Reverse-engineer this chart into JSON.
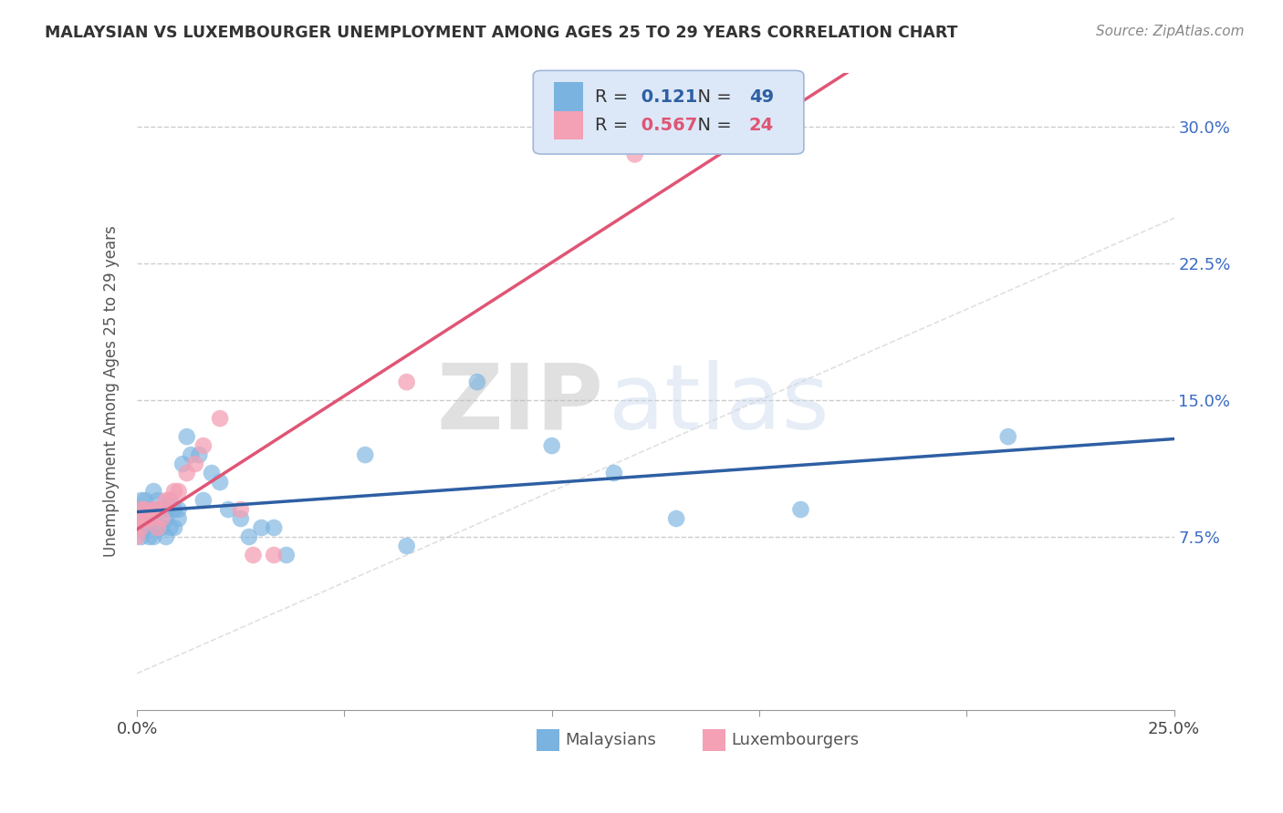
{
  "title": "MALAYSIAN VS LUXEMBOURGER UNEMPLOYMENT AMONG AGES 25 TO 29 YEARS CORRELATION CHART",
  "source": "Source: ZipAtlas.com",
  "ylabel": "Unemployment Among Ages 25 to 29 years",
  "xlim": [
    0.0,
    0.25
  ],
  "ylim": [
    -0.02,
    0.33
  ],
  "xtick_positions": [
    0.0,
    0.05,
    0.1,
    0.15,
    0.2,
    0.25
  ],
  "xtick_labels_show": [
    "0.0%",
    "",
    "",
    "",
    "",
    "25.0%"
  ],
  "ytick_positions": [
    0.075,
    0.15,
    0.225,
    0.3
  ],
  "ytick_labels": [
    "7.5%",
    "15.0%",
    "22.5%",
    "30.0%"
  ],
  "malaysian_color": "#7ab3e0",
  "luxembourger_color": "#f4a0b5",
  "blue_line_color": "#2e5fa3",
  "pink_line_color": "#e05575",
  "r_blue": 0.121,
  "n_blue": 49,
  "r_pink": 0.567,
  "n_pink": 24,
  "malaysian_x": [
    0.0,
    0.0,
    0.001,
    0.001,
    0.001,
    0.002,
    0.002,
    0.002,
    0.003,
    0.003,
    0.003,
    0.004,
    0.004,
    0.004,
    0.005,
    0.005,
    0.005,
    0.006,
    0.006,
    0.007,
    0.007,
    0.007,
    0.008,
    0.008,
    0.009,
    0.009,
    0.01,
    0.01,
    0.011,
    0.012,
    0.013,
    0.015,
    0.016,
    0.018,
    0.02,
    0.022,
    0.025,
    0.027,
    0.03,
    0.033,
    0.036,
    0.055,
    0.065,
    0.082,
    0.1,
    0.115,
    0.13,
    0.16,
    0.21
  ],
  "malaysian_y": [
    0.085,
    0.09,
    0.075,
    0.08,
    0.095,
    0.08,
    0.085,
    0.095,
    0.075,
    0.085,
    0.09,
    0.075,
    0.085,
    0.1,
    0.08,
    0.09,
    0.095,
    0.08,
    0.09,
    0.075,
    0.085,
    0.09,
    0.08,
    0.095,
    0.08,
    0.09,
    0.085,
    0.09,
    0.115,
    0.13,
    0.12,
    0.12,
    0.095,
    0.11,
    0.105,
    0.09,
    0.085,
    0.075,
    0.08,
    0.08,
    0.065,
    0.12,
    0.07,
    0.16,
    0.125,
    0.11,
    0.085,
    0.09,
    0.13
  ],
  "luxembourger_x": [
    0.0,
    0.0,
    0.001,
    0.001,
    0.002,
    0.002,
    0.003,
    0.004,
    0.005,
    0.005,
    0.006,
    0.007,
    0.008,
    0.009,
    0.01,
    0.012,
    0.014,
    0.016,
    0.02,
    0.025,
    0.028,
    0.033,
    0.065,
    0.12
  ],
  "luxembourger_y": [
    0.075,
    0.085,
    0.08,
    0.09,
    0.085,
    0.09,
    0.085,
    0.09,
    0.08,
    0.09,
    0.085,
    0.095,
    0.095,
    0.1,
    0.1,
    0.11,
    0.115,
    0.125,
    0.14,
    0.09,
    0.065,
    0.065,
    0.16,
    0.285
  ],
  "watermark_zip": "ZIP",
  "watermark_atlas": "atlas",
  "background_color": "#ffffff",
  "grid_color": "#cccccc",
  "legend_bg": "#dce8f8",
  "legend_border": "#a0b8d8"
}
